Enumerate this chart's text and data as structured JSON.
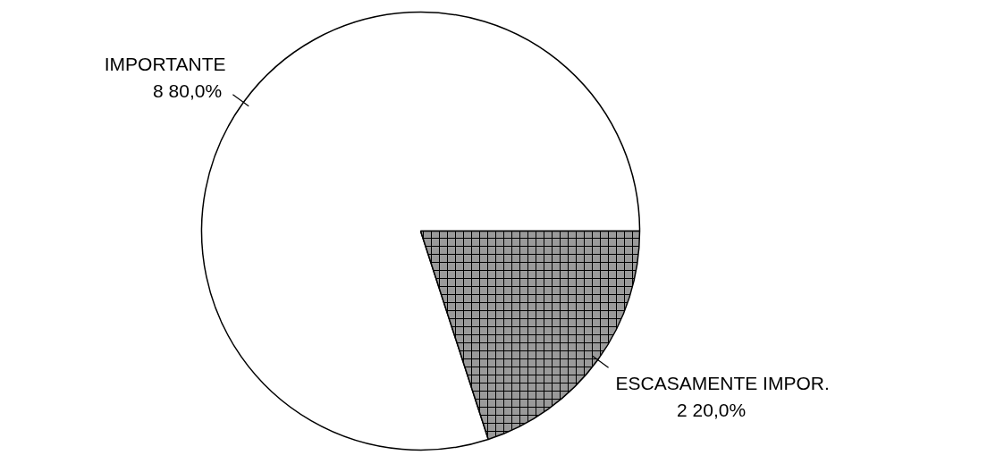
{
  "chart_data": {
    "type": "pie",
    "categories": [
      "IMPORTANTE",
      "ESCASAMENTE IMPOR."
    ],
    "values": [
      8,
      2
    ],
    "value_labels": [
      "8  80,0%",
      "2  20,0%"
    ],
    "colors": [
      "#ffffff",
      "#9a9a9a"
    ]
  }
}
